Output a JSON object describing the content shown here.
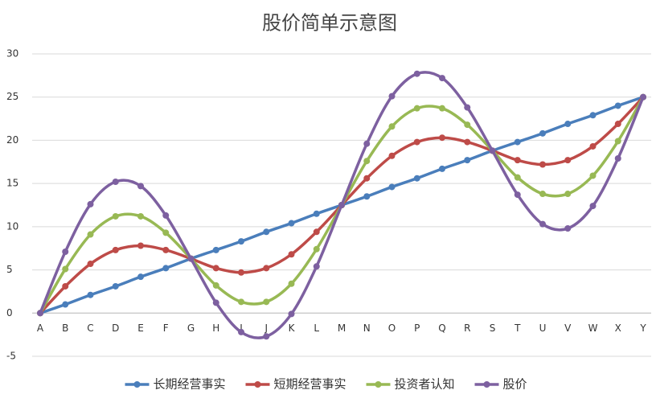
{
  "chart_data": {
    "type": "line",
    "title": "股价简单示意图",
    "categories": [
      "A",
      "B",
      "C",
      "D",
      "E",
      "F",
      "G",
      "H",
      "I",
      "J",
      "K",
      "L",
      "M",
      "N",
      "O",
      "P",
      "Q",
      "R",
      "S",
      "T",
      "U",
      "V",
      "W",
      "X",
      "Y"
    ],
    "series": [
      {
        "name": "长期经营事实",
        "color": "#4a7ebb",
        "values": [
          0,
          1,
          2.1,
          3.1,
          4.2,
          5.2,
          6.3,
          7.3,
          8.3,
          9.4,
          10.4,
          11.5,
          12.5,
          13.5,
          14.6,
          15.6,
          16.7,
          17.7,
          18.8,
          19.8,
          20.8,
          21.9,
          22.9,
          24,
          25
        ]
      },
      {
        "name": "短期经营事实",
        "color": "#be4b48",
        "values": [
          0,
          3.1,
          5.7,
          7.3,
          7.8,
          7.3,
          6.3,
          5.2,
          4.7,
          5.2,
          6.8,
          9.4,
          12.5,
          15.6,
          18.2,
          19.8,
          20.3,
          19.8,
          18.8,
          17.7,
          17.2,
          17.7,
          19.3,
          21.9,
          25
        ]
      },
      {
        "name": "投资者认知",
        "color": "#98b954",
        "values": [
          0,
          5.1,
          9.1,
          11.2,
          11.2,
          9.3,
          6.3,
          3.2,
          1.3,
          1.3,
          3.4,
          7.4,
          12.5,
          17.6,
          21.6,
          23.7,
          23.7,
          21.8,
          18.8,
          15.7,
          13.8,
          13.8,
          15.9,
          19.9,
          25
        ]
      },
      {
        "name": "股价",
        "color": "#7d60a0",
        "values": [
          0,
          7.1,
          12.6,
          15.2,
          14.7,
          11.3,
          6.3,
          1.2,
          -2.2,
          -2.7,
          -0.1,
          5.4,
          12.5,
          19.6,
          25.1,
          27.7,
          27.2,
          23.8,
          18.8,
          13.7,
          10.3,
          9.8,
          12.4,
          17.9,
          25
        ]
      }
    ],
    "ylim": [
      -5,
      30
    ],
    "yticks": [
      -5,
      0,
      5,
      10,
      15,
      20,
      25,
      30
    ],
    "grid": true,
    "legend": "bottom"
  }
}
